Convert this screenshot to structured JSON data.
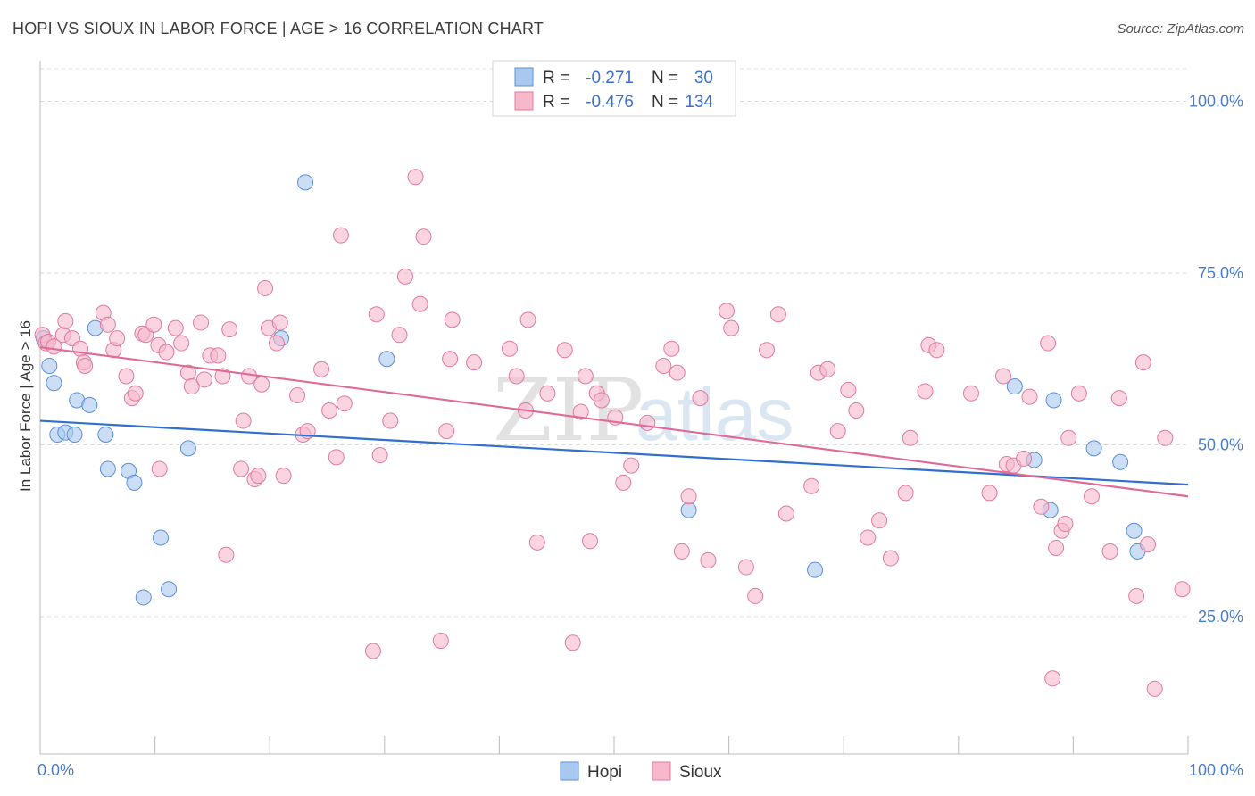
{
  "title": "HOPI VS SIOUX IN LABOR FORCE | AGE > 16 CORRELATION CHART",
  "source": "Source: ZipAtlas.com",
  "watermark": {
    "zip": "ZIP",
    "atlas": "atlas"
  },
  "chart_data": {
    "type": "scatter",
    "ylabel": "In Labor Force | Age > 16",
    "xlim": [
      0,
      100
    ],
    "ylim": [
      5,
      105
    ],
    "x_tick_labels": [
      {
        "value": 0,
        "label": "0.0%"
      },
      {
        "value": 100,
        "label": "100.0%"
      }
    ],
    "y_tick_labels": [
      {
        "value": 100,
        "label": "100.0%"
      },
      {
        "value": 75,
        "label": "75.0%"
      },
      {
        "value": 50,
        "label": "50.0%"
      },
      {
        "value": 25,
        "label": "25.0%"
      }
    ],
    "legend_stats": [
      {
        "r_label": "R =",
        "r_value": "-0.271",
        "n_label": "N =",
        "n_value": "30",
        "color": "#a9c8ef",
        "stroke": "#5b8fd6"
      },
      {
        "r_label": "R =",
        "r_value": "-0.476",
        "n_label": "N =",
        "n_value": "134",
        "color": "#f7b8cb",
        "stroke": "#e07aa0"
      }
    ],
    "series": [
      {
        "name": "Hopi",
        "color": "#a9c8ef",
        "stroke": "#5b8fd6",
        "line_color": "#2f6fce",
        "trend": [
          [
            0,
            53.5
          ],
          [
            100,
            44.2
          ]
        ],
        "points": [
          [
            0.3,
            65.5
          ],
          [
            0.8,
            61.5
          ],
          [
            1.2,
            59.0
          ],
          [
            1.5,
            51.5
          ],
          [
            2.2,
            51.8
          ],
          [
            3.0,
            51.5
          ],
          [
            3.2,
            56.5
          ],
          [
            4.3,
            55.8
          ],
          [
            4.8,
            67.0
          ],
          [
            5.7,
            51.5
          ],
          [
            5.9,
            46.5
          ],
          [
            7.7,
            46.2
          ],
          [
            8.2,
            44.5
          ],
          [
            9.0,
            27.8
          ],
          [
            10.5,
            36.5
          ],
          [
            11.2,
            29.0
          ],
          [
            12.9,
            49.5
          ],
          [
            21.0,
            65.5
          ],
          [
            23.1,
            88.2
          ],
          [
            30.2,
            62.5
          ],
          [
            56.5,
            40.5
          ],
          [
            67.5,
            31.8
          ],
          [
            84.9,
            58.5
          ],
          [
            86.6,
            47.8
          ],
          [
            88.0,
            40.5
          ],
          [
            88.3,
            56.5
          ],
          [
            91.8,
            49.5
          ],
          [
            94.1,
            47.5
          ],
          [
            95.3,
            37.5
          ],
          [
            95.6,
            34.5
          ]
        ]
      },
      {
        "name": "Sioux",
        "color": "#f7b8cb",
        "stroke": "#e07aa0",
        "line_color": "#e06a97",
        "trend": [
          [
            0,
            64.2
          ],
          [
            100,
            42.5
          ]
        ],
        "points": [
          [
            0.2,
            66.0
          ],
          [
            0.5,
            64.8
          ],
          [
            0.7,
            65.0
          ],
          [
            1.2,
            64.3
          ],
          [
            2.0,
            66.0
          ],
          [
            2.2,
            68.0
          ],
          [
            2.8,
            65.5
          ],
          [
            3.5,
            64.0
          ],
          [
            3.8,
            62.0
          ],
          [
            3.9,
            61.5
          ],
          [
            5.5,
            69.2
          ],
          [
            5.9,
            67.5
          ],
          [
            6.4,
            63.8
          ],
          [
            6.7,
            65.5
          ],
          [
            7.5,
            60.0
          ],
          [
            8.0,
            56.8
          ],
          [
            8.3,
            57.5
          ],
          [
            8.9,
            66.2
          ],
          [
            9.2,
            66.0
          ],
          [
            9.9,
            67.5
          ],
          [
            10.3,
            64.5
          ],
          [
            10.4,
            46.5
          ],
          [
            11.0,
            63.5
          ],
          [
            11.8,
            67.0
          ],
          [
            12.3,
            64.8
          ],
          [
            12.9,
            60.5
          ],
          [
            13.2,
            58.5
          ],
          [
            14.0,
            67.8
          ],
          [
            14.3,
            59.5
          ],
          [
            14.8,
            63.0
          ],
          [
            15.5,
            63.0
          ],
          [
            15.9,
            60.0
          ],
          [
            16.2,
            34.0
          ],
          [
            16.5,
            66.8
          ],
          [
            17.5,
            46.5
          ],
          [
            17.7,
            53.5
          ],
          [
            18.2,
            60.0
          ],
          [
            18.7,
            45.0
          ],
          [
            19.0,
            45.5
          ],
          [
            19.3,
            58.8
          ],
          [
            19.6,
            72.8
          ],
          [
            19.9,
            67.0
          ],
          [
            20.6,
            64.8
          ],
          [
            20.9,
            67.8
          ],
          [
            21.2,
            45.5
          ],
          [
            22.4,
            57.2
          ],
          [
            22.9,
            51.5
          ],
          [
            23.3,
            52.0
          ],
          [
            24.5,
            61.0
          ],
          [
            25.2,
            55.0
          ],
          [
            25.8,
            48.2
          ],
          [
            26.2,
            80.5
          ],
          [
            26.5,
            56.0
          ],
          [
            29.0,
            20.0
          ],
          [
            29.3,
            69.0
          ],
          [
            29.6,
            48.5
          ],
          [
            30.5,
            53.5
          ],
          [
            31.3,
            66.0
          ],
          [
            31.8,
            74.5
          ],
          [
            32.7,
            89.0
          ],
          [
            33.1,
            70.5
          ],
          [
            33.4,
            80.3
          ],
          [
            34.9,
            21.5
          ],
          [
            35.4,
            52.0
          ],
          [
            35.9,
            68.2
          ],
          [
            35.7,
            62.5
          ],
          [
            37.8,
            62.0
          ],
          [
            40.9,
            64.0
          ],
          [
            41.5,
            60.0
          ],
          [
            42.3,
            55.0
          ],
          [
            42.5,
            68.2
          ],
          [
            43.3,
            35.8
          ],
          [
            44.2,
            57.5
          ],
          [
            45.7,
            63.8
          ],
          [
            46.4,
            21.2
          ],
          [
            47.1,
            54.8
          ],
          [
            47.5,
            60.0
          ],
          [
            47.9,
            36.0
          ],
          [
            48.5,
            57.5
          ],
          [
            48.9,
            56.5
          ],
          [
            50.1,
            54.0
          ],
          [
            50.8,
            44.5
          ],
          [
            51.5,
            47.0
          ],
          [
            52.9,
            53.2
          ],
          [
            54.3,
            61.5
          ],
          [
            55.0,
            64.0
          ],
          [
            55.9,
            34.5
          ],
          [
            55.5,
            60.5
          ],
          [
            56.5,
            42.5
          ],
          [
            57.5,
            56.8
          ],
          [
            58.2,
            33.2
          ],
          [
            59.8,
            69.5
          ],
          [
            60.2,
            67.0
          ],
          [
            61.5,
            32.2
          ],
          [
            62.3,
            28.0
          ],
          [
            63.3,
            63.8
          ],
          [
            64.3,
            69.0
          ],
          [
            65.0,
            40.0
          ],
          [
            67.2,
            44.0
          ],
          [
            67.8,
            60.5
          ],
          [
            68.6,
            61.0
          ],
          [
            69.5,
            52.0
          ],
          [
            70.4,
            58.0
          ],
          [
            71.1,
            55.0
          ],
          [
            72.1,
            36.5
          ],
          [
            73.1,
            39.0
          ],
          [
            74.1,
            33.5
          ],
          [
            75.4,
            43.0
          ],
          [
            75.8,
            51.0
          ],
          [
            77.1,
            57.8
          ],
          [
            77.4,
            64.5
          ],
          [
            78.1,
            63.8
          ],
          [
            81.1,
            57.5
          ],
          [
            82.7,
            43.0
          ],
          [
            83.9,
            60.0
          ],
          [
            84.2,
            47.2
          ],
          [
            84.8,
            47.0
          ],
          [
            85.7,
            48.0
          ],
          [
            86.2,
            57.0
          ],
          [
            87.2,
            41.0
          ],
          [
            87.8,
            64.8
          ],
          [
            88.2,
            16.0
          ],
          [
            88.5,
            35.0
          ],
          [
            89.0,
            37.5
          ],
          [
            89.3,
            38.5
          ],
          [
            89.6,
            51.0
          ],
          [
            90.5,
            57.5
          ],
          [
            91.6,
            42.5
          ],
          [
            93.2,
            34.5
          ],
          [
            94.0,
            56.8
          ],
          [
            95.5,
            28.0
          ],
          [
            96.1,
            62.0
          ],
          [
            96.5,
            35.5
          ],
          [
            97.1,
            14.5
          ],
          [
            98.0,
            51.0
          ],
          [
            99.5,
            29.0
          ]
        ]
      }
    ],
    "legend": {
      "position": "bottom-center",
      "items": [
        "Hopi",
        "Sioux"
      ]
    },
    "grid": true
  }
}
